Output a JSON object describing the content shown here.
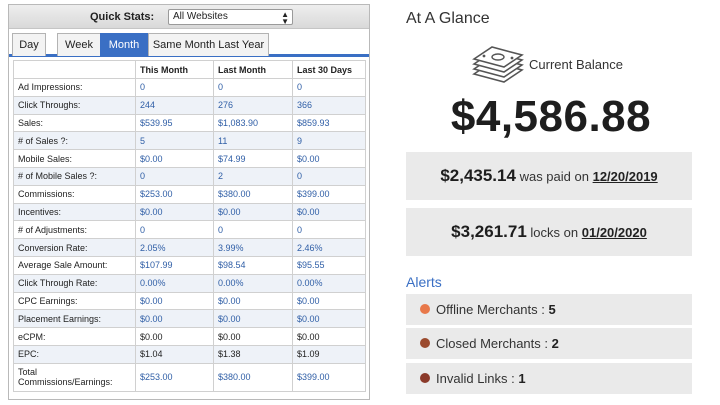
{
  "quick_stats": {
    "label": "Quick Stats:",
    "select_value": "All Websites"
  },
  "tabs": [
    {
      "label": "Day"
    },
    {
      "label": "Week"
    },
    {
      "label": "Month",
      "active": true
    },
    {
      "label": "Same Month Last Year"
    }
  ],
  "table": {
    "headers": [
      "",
      "This Month",
      "Last Month",
      "Last 30 Days"
    ],
    "rows": [
      {
        "label": "Ad Impressions:",
        "values": [
          "0",
          "0",
          "0"
        ]
      },
      {
        "label": "Click Throughs:",
        "values": [
          "244",
          "276",
          "366"
        ]
      },
      {
        "label": "Sales:",
        "values": [
          "$539.95",
          "$1,083.90",
          "$859.93"
        ]
      },
      {
        "label": "# of Sales ?:",
        "values": [
          "5",
          "11",
          "9"
        ]
      },
      {
        "label": "Mobile Sales:",
        "values": [
          "$0.00",
          "$74.99",
          "$0.00"
        ]
      },
      {
        "label": "# of Mobile Sales ?:",
        "values": [
          "0",
          "2",
          "0"
        ]
      },
      {
        "label": "Commissions:",
        "values": [
          "$253.00",
          "$380.00",
          "$399.00"
        ]
      },
      {
        "label": "Incentives:",
        "values": [
          "$0.00",
          "$0.00",
          "$0.00"
        ]
      },
      {
        "label": "# of Adjustments:",
        "values": [
          "0",
          "0",
          "0"
        ]
      },
      {
        "label": "Conversion Rate:",
        "values": [
          "2.05%",
          "3.99%",
          "2.46%"
        ]
      },
      {
        "label": "Average Sale Amount:",
        "values": [
          "$107.99",
          "$98.54",
          "$95.55"
        ]
      },
      {
        "label": "Click Through Rate:",
        "values": [
          "0.00%",
          "0.00%",
          "0.00%"
        ]
      },
      {
        "label": "CPC Earnings:",
        "values": [
          "$0.00",
          "$0.00",
          "$0.00"
        ]
      },
      {
        "label": "Placement Earnings:",
        "values": [
          "$0.00",
          "$0.00",
          "$0.00"
        ]
      },
      {
        "label": "eCPM:",
        "values": [
          "$0.00",
          "$0.00",
          "$0.00"
        ]
      },
      {
        "label": "EPC:",
        "values": [
          "$1.04",
          "$1.38",
          "$1.09"
        ]
      },
      {
        "label": "Total Commissions/Earnings:",
        "values": [
          "$253.00",
          "$380.00",
          "$399.00"
        ]
      }
    ]
  },
  "glance": {
    "title": "At A Glance",
    "current_balance_label": "Current Balance",
    "balance": "$4,586.88",
    "paid_amount": "$2,435.14",
    "paid_text": "was paid on",
    "paid_date": "12/20/2019",
    "locks_amount": "$3,261.71",
    "locks_text": "locks on",
    "locks_date": "01/20/2020"
  },
  "alerts": {
    "title": "Alerts",
    "items": [
      {
        "label": "Offline Merchants :",
        "count": "5",
        "color": "#e8784a"
      },
      {
        "label": "Closed Merchants :",
        "count": "2",
        "color": "#9b4a2e"
      },
      {
        "label": "Invalid Links :",
        "count": "1",
        "color": "#8b3a2a"
      }
    ]
  },
  "colors": {
    "accent": "#3a6fc4",
    "value_text": "#2f5ea6"
  }
}
